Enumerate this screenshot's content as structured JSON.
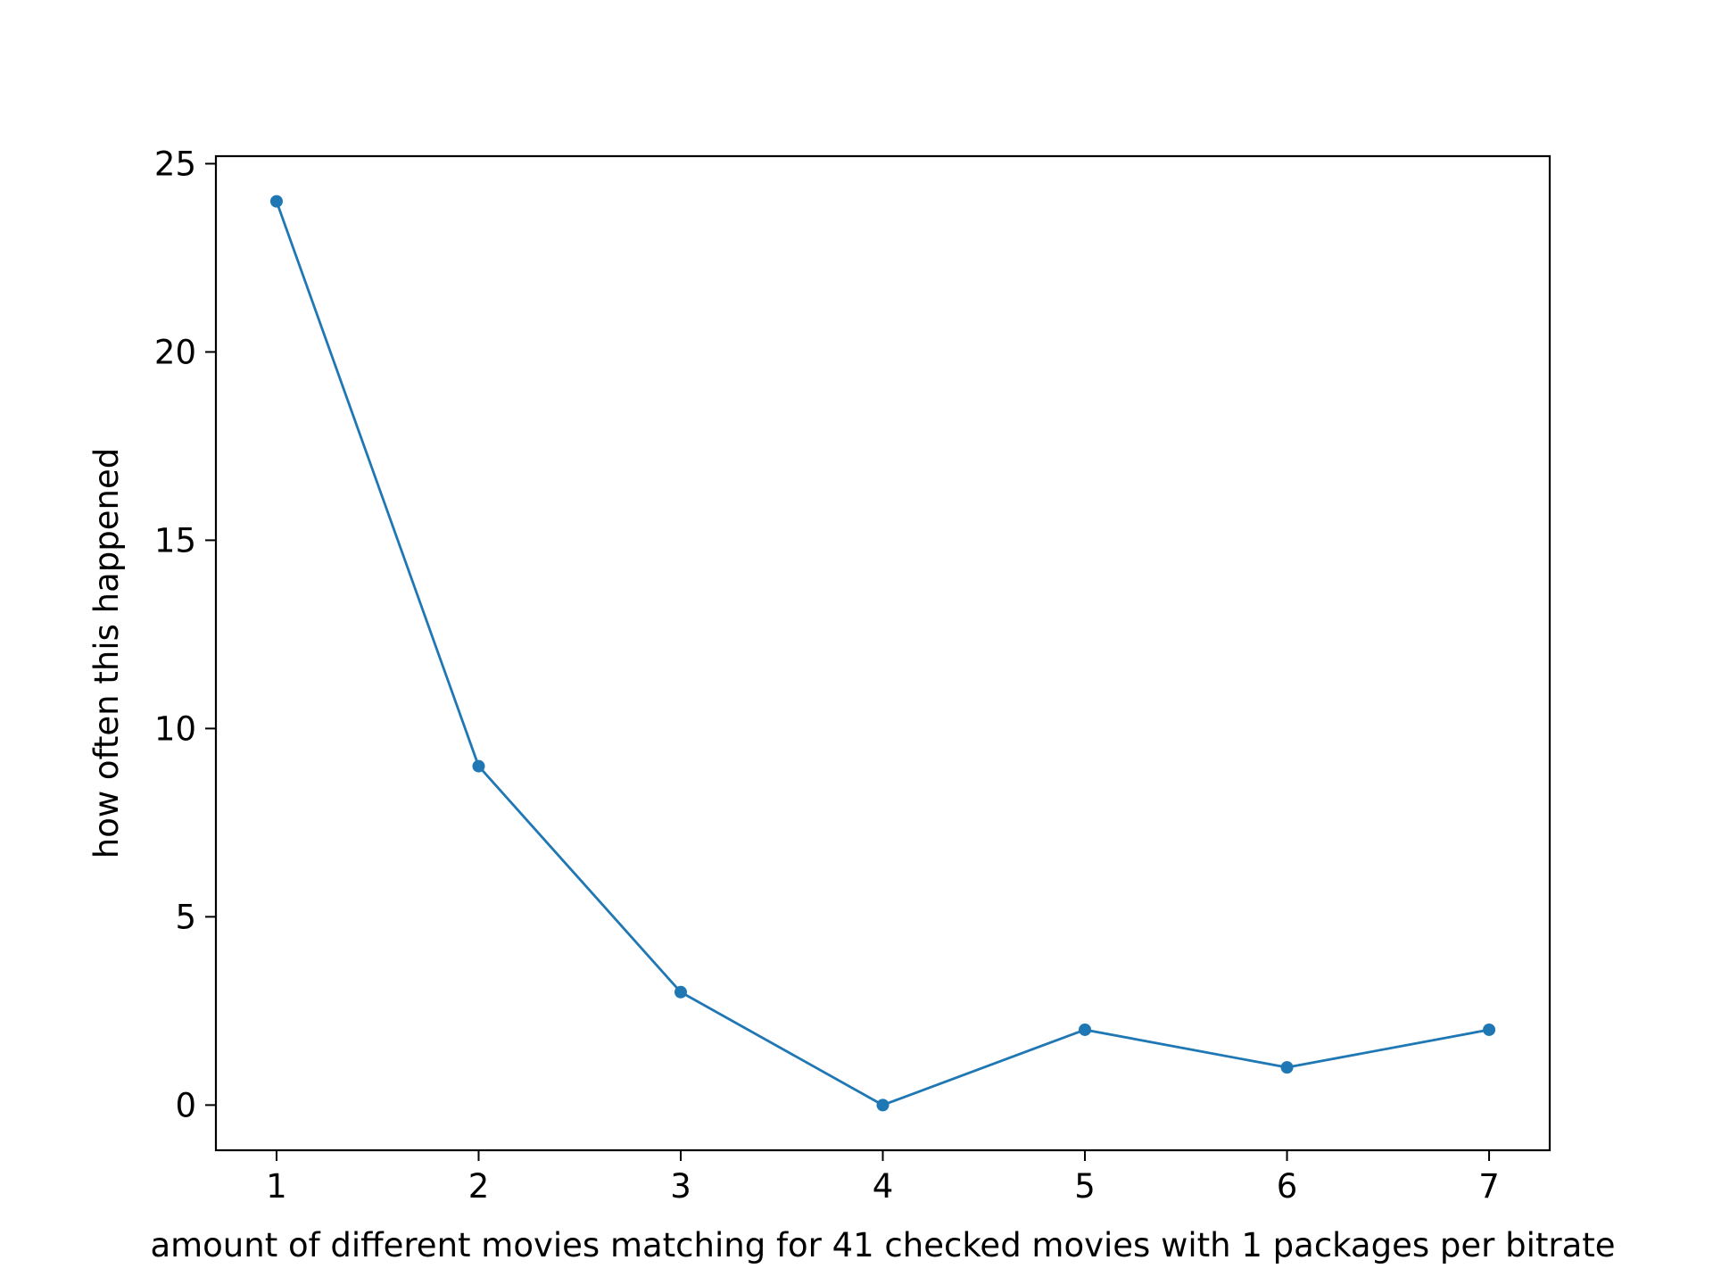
{
  "chart_data": {
    "type": "line",
    "title": "",
    "xlabel": "amount of different movies matching for 41 checked movies with 1 packages per bitrate",
    "ylabel": "how often this happened",
    "x": [
      1,
      2,
      3,
      4,
      5,
      6,
      7
    ],
    "series": [
      {
        "values": [
          24,
          9,
          3,
          0,
          2,
          1,
          2
        ]
      }
    ],
    "xlim": [
      0.7,
      7.3
    ],
    "ylim": [
      -1.2,
      25.2
    ],
    "xticks": [
      1,
      2,
      3,
      4,
      5,
      6,
      7
    ],
    "yticks": [
      0,
      5,
      10,
      15,
      20,
      25
    ],
    "grid": false,
    "line_color": "#1f77b4",
    "marker": "circle"
  }
}
